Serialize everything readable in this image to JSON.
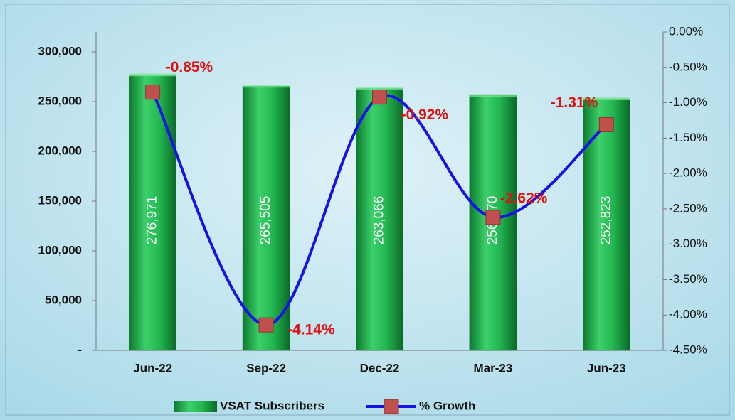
{
  "chart_data": {
    "type": "bar_line",
    "categories": [
      "Jun-22",
      "Sep-22",
      "Dec-22",
      "Mar-23",
      "Jun-23"
    ],
    "series": [
      {
        "name": "VSAT Subscribers",
        "color": "#1fae4a",
        "type": "bar",
        "values": [
          276971,
          265505,
          263066,
          256170,
          252823
        ],
        "value_labels": [
          "276,971",
          "265,505",
          "263,066",
          "256,170",
          "252,823"
        ]
      },
      {
        "name": "% Growth",
        "color": "#1414e6",
        "marker_color": "#c0504d",
        "type": "line",
        "axis": "y2",
        "values": [
          -0.85,
          -4.14,
          -0.92,
          -2.62,
          -1.31
        ],
        "value_labels": [
          "-0.85%",
          "-4.14%",
          "-0.92%",
          "-2.62%",
          "-1.31%"
        ]
      }
    ],
    "ylim": [
      0,
      320000
    ],
    "yticks": [
      {
        "value": 0,
        "label": "-"
      },
      {
        "value": 50000,
        "label": "50,000"
      },
      {
        "value": 100000,
        "label": "100,000"
      },
      {
        "value": 150000,
        "label": "150,000"
      },
      {
        "value": 200000,
        "label": "200,000"
      },
      {
        "value": 250000,
        "label": "250,000"
      },
      {
        "value": 300000,
        "label": "300,000"
      }
    ],
    "y2lim": [
      -4.5,
      0
    ],
    "y2ticks": [
      {
        "value": -4.5,
        "label": "-4.50%"
      },
      {
        "value": -4,
        "label": "-4.00%"
      },
      {
        "value": -3.5,
        "label": "-3.50%"
      },
      {
        "value": -3,
        "label": "-3.00%"
      },
      {
        "value": -2.5,
        "label": "-2.50%"
      },
      {
        "value": -2,
        "label": "-2.00%"
      },
      {
        "value": -1.5,
        "label": "-1.50%"
      },
      {
        "value": -1,
        "label": "-1.00%"
      },
      {
        "value": -0.5,
        "label": "-0.50%"
      },
      {
        "value": 0,
        "label": "0.00%"
      }
    ],
    "legend": "bottom"
  }
}
